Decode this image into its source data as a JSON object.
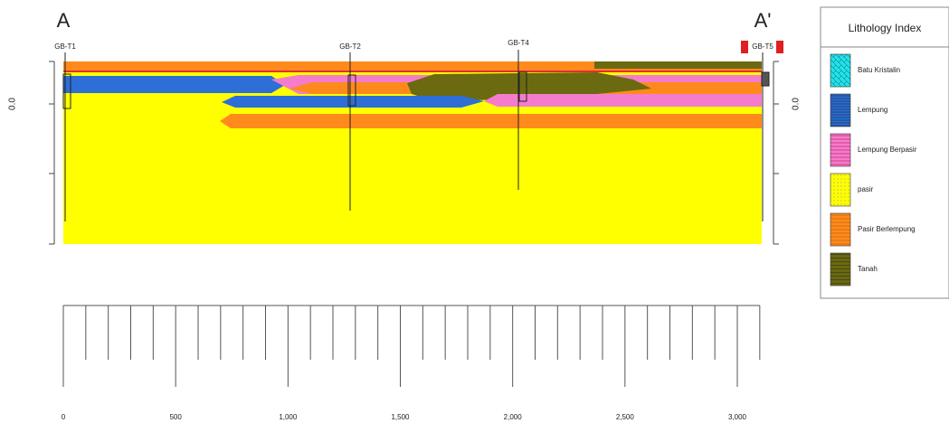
{
  "section": {
    "start_label": "A",
    "end_label": "A'",
    "left_elevation": "0.0",
    "right_elevation": "0.0",
    "boreholes": [
      "GB-T1",
      "GB-T2",
      "GB-T4",
      "GB-T5"
    ]
  },
  "legend": {
    "title": "Lithology Index",
    "items": [
      "Batu Kristalin",
      "Lempung",
      "Lempung Berpasir",
      "pasir",
      "Pasir Berlempung",
      "Tanah"
    ]
  },
  "scale": {
    "labels": [
      "0",
      "500",
      "1,000",
      "1,500",
      "2,000",
      "2,500",
      "3,000"
    ]
  }
}
